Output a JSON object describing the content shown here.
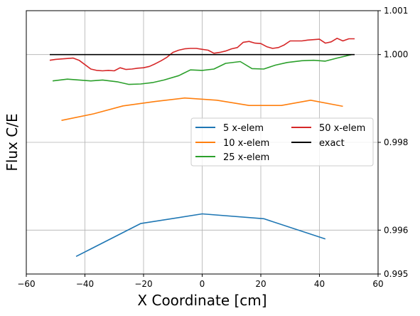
{
  "chart_data": {
    "type": "line",
    "title": "",
    "xlabel": "X Coordinate [cm]",
    "ylabel": "Flux C/E",
    "xlim": [
      -60,
      60
    ],
    "ylim": [
      0.995,
      1.001
    ],
    "xticks": [
      -60,
      -40,
      -20,
      0,
      20,
      40,
      60
    ],
    "xtick_labels": [
      "−60",
      "−40",
      "−20",
      "0",
      "20",
      "40",
      "60"
    ],
    "yticks_right": [
      0.995,
      0.996,
      0.998,
      1.0,
      1.001
    ],
    "ytick_labels_right": [
      "0.995",
      "0.996",
      "0.998",
      "1.000",
      "1.001"
    ],
    "grid_x": [
      -40,
      -20,
      0,
      20,
      40
    ],
    "grid_y": [
      0.996,
      0.998,
      1.0
    ],
    "grid": true,
    "legend_position": "center-right",
    "series": [
      {
        "name": "5 x-elem",
        "color": "#1f77b4",
        "x": [
          -43,
          -21,
          0,
          21,
          42
        ],
        "y": [
          0.9954,
          0.99615,
          0.99637,
          0.99626,
          0.9958
        ]
      },
      {
        "name": "10 x-elem",
        "color": "#ff7f0e",
        "x": [
          -48,
          -37,
          -27,
          -16,
          -6,
          5,
          16,
          27,
          37,
          48
        ],
        "y": [
          0.9985,
          0.99865,
          0.99883,
          0.99893,
          0.99901,
          0.99896,
          0.99884,
          0.99884,
          0.99896,
          0.99882
        ]
      },
      {
        "name": "25 x-elem",
        "color": "#2ca02c",
        "x": [
          -51,
          -46,
          -42,
          -38,
          -34,
          -29,
          -25,
          -21,
          -17,
          -13,
          -8,
          -4,
          0,
          4,
          8,
          13,
          17,
          21,
          25,
          29,
          34,
          38,
          42,
          46,
          51
        ],
        "y": [
          0.9994,
          0.99944,
          0.99942,
          0.9994,
          0.99942,
          0.99938,
          0.99932,
          0.99933,
          0.99936,
          0.99942,
          0.99952,
          0.99965,
          0.99964,
          0.99967,
          0.9998,
          0.99984,
          0.99968,
          0.99967,
          0.99976,
          0.99982,
          0.99986,
          0.99987,
          0.99985,
          0.99992,
          1.0
        ]
      },
      {
        "name": "50 x-elem",
        "color": "#d62728",
        "x": [
          -52,
          -50,
          -48,
          -46,
          -44,
          -42,
          -40,
          -38,
          -36,
          -34,
          -32,
          -30,
          -28,
          -26,
          -24,
          -22,
          -20,
          -18,
          -16,
          -14,
          -12,
          -10,
          -8,
          -6,
          -4,
          -2,
          0,
          2,
          4,
          6,
          8,
          10,
          12,
          14,
          16,
          18,
          20,
          22,
          24,
          26,
          28,
          30,
          32,
          34,
          36,
          38,
          40,
          42,
          44,
          46,
          48,
          50,
          52
        ],
        "y": [
          0.99987,
          0.99989,
          0.9999,
          0.99991,
          0.99992,
          0.99987,
          0.99977,
          0.99967,
          0.99964,
          0.99963,
          0.99964,
          0.99963,
          0.9997,
          0.99966,
          0.99967,
          0.99969,
          0.9997,
          0.99973,
          0.99979,
          0.99986,
          0.99994,
          1.00005,
          1.0001,
          1.00013,
          1.00014,
          1.00014,
          1.00012,
          1.0001,
          1.00003,
          1.00005,
          1.00008,
          1.00013,
          1.00016,
          1.00028,
          1.0003,
          1.00026,
          1.00025,
          1.00018,
          1.00014,
          1.00016,
          1.00022,
          1.00031,
          1.00031,
          1.00031,
          1.00033,
          1.00034,
          1.00035,
          1.00026,
          1.00029,
          1.00037,
          1.00031,
          1.00036,
          1.00036
        ]
      },
      {
        "name": "exact",
        "color": "#000000",
        "x": [
          -52,
          52
        ],
        "y": [
          1.0,
          1.0
        ]
      }
    ]
  }
}
